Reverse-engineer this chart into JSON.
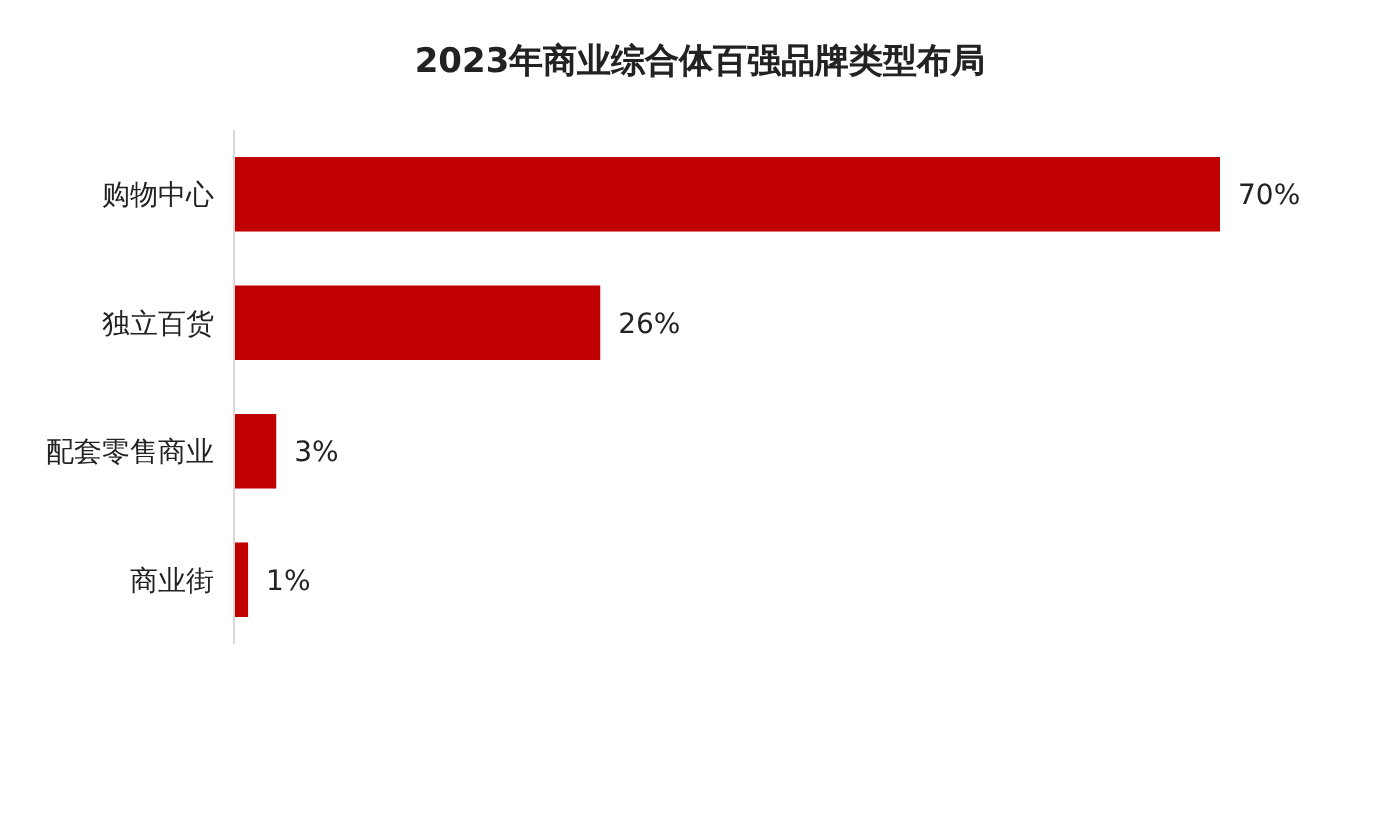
{
  "chart_data": {
    "type": "bar",
    "orientation": "horizontal",
    "title": "2023年商业综合体百强品牌类型布局",
    "categories": [
      "购物中心",
      "独立百货",
      "配套零售商业",
      "商业街"
    ],
    "values": [
      70,
      26,
      3,
      1
    ],
    "value_labels": [
      "70%",
      "26%",
      "3%",
      "1%"
    ],
    "color": "#c00000"
  }
}
